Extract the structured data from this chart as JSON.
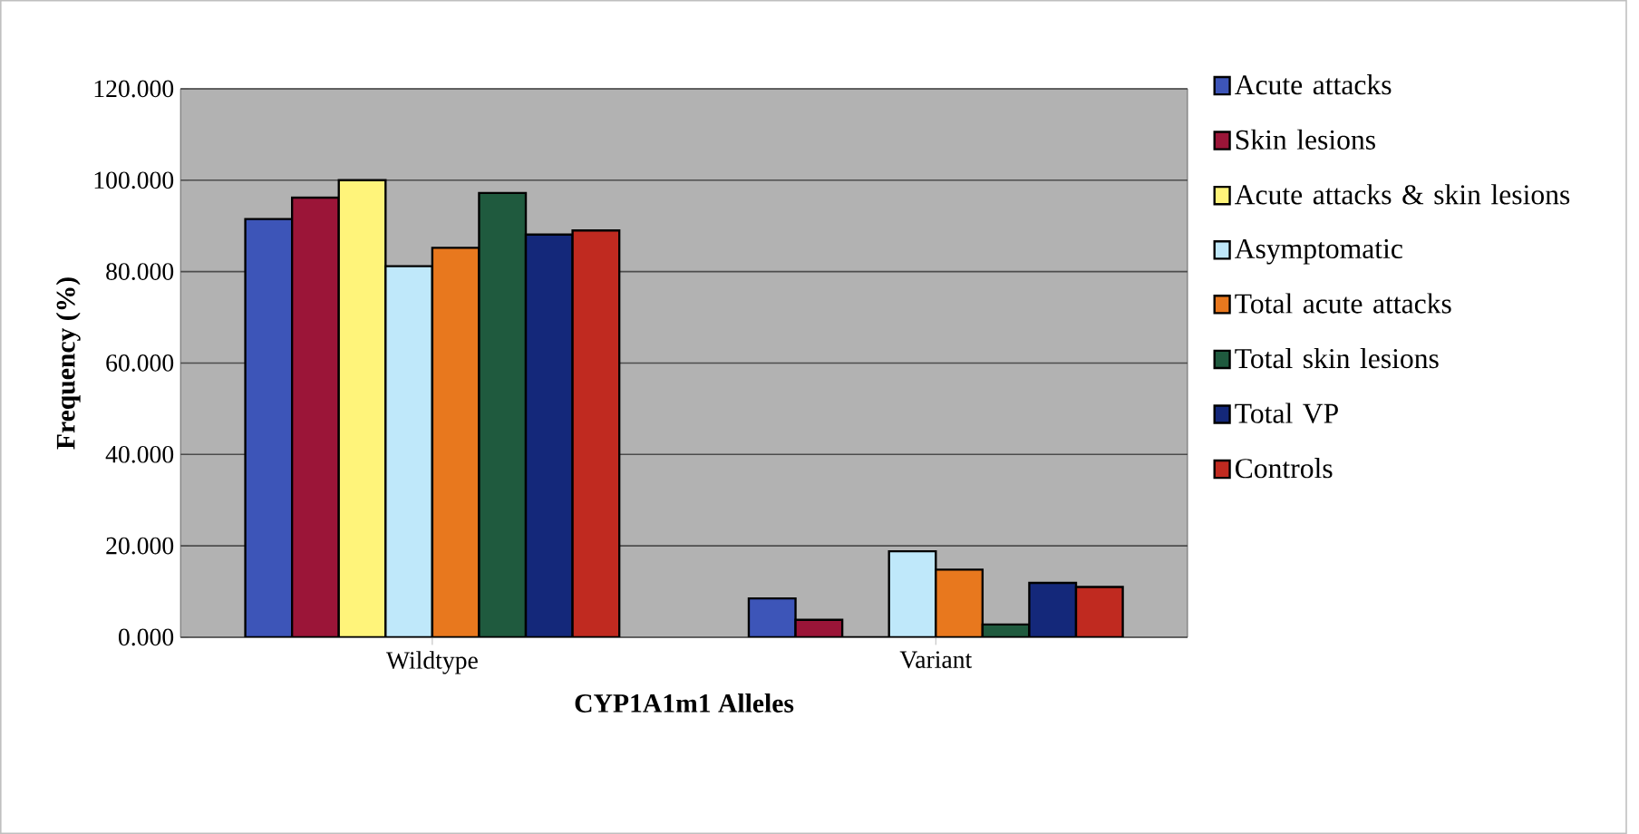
{
  "chart_data": {
    "type": "bar",
    "xlabel": "CYP1A1m1 Alleles",
    "ylabel": "Frequency (%)",
    "categories": [
      "Wildtype",
      "Variant"
    ],
    "series": [
      {
        "name": "Acute attacks",
        "color": "#3d55b8",
        "values": [
          91.5,
          8.5
        ]
      },
      {
        "name": "Skin lesions",
        "color": "#9b1538",
        "values": [
          96.2,
          3.8
        ]
      },
      {
        "name": "Acute attacks & skin lesions",
        "color": "#fff47a",
        "values": [
          100,
          0
        ]
      },
      {
        "name": "Asymptomatic",
        "color": "#bfe8fa",
        "values": [
          81.2,
          18.8
        ]
      },
      {
        "name": "Total acute attacks",
        "color": "#e8781e",
        "values": [
          85.2,
          14.8
        ]
      },
      {
        "name": "Total skin lesions",
        "color": "#1f5a3e",
        "values": [
          97.2,
          2.8
        ]
      },
      {
        "name": "Total VP",
        "color": "#14287a",
        "values": [
          88.1,
          11.9
        ]
      },
      {
        "name": "Controls",
        "color": "#c02a20",
        "values": [
          89.0,
          11.0
        ]
      }
    ],
    "ylim": [
      0,
      120
    ],
    "yticks": [
      {
        "value": 0,
        "label": "0.000"
      },
      {
        "value": 20,
        "label": "20.000"
      },
      {
        "value": 40,
        "label": "40.000"
      },
      {
        "value": 60,
        "label": "60.000"
      },
      {
        "value": 80,
        "label": "80.000"
      },
      {
        "value": 100,
        "label": "100.000"
      },
      {
        "value": 120,
        "label": "120.000"
      }
    ],
    "grid": "y",
    "legend": "right"
  }
}
